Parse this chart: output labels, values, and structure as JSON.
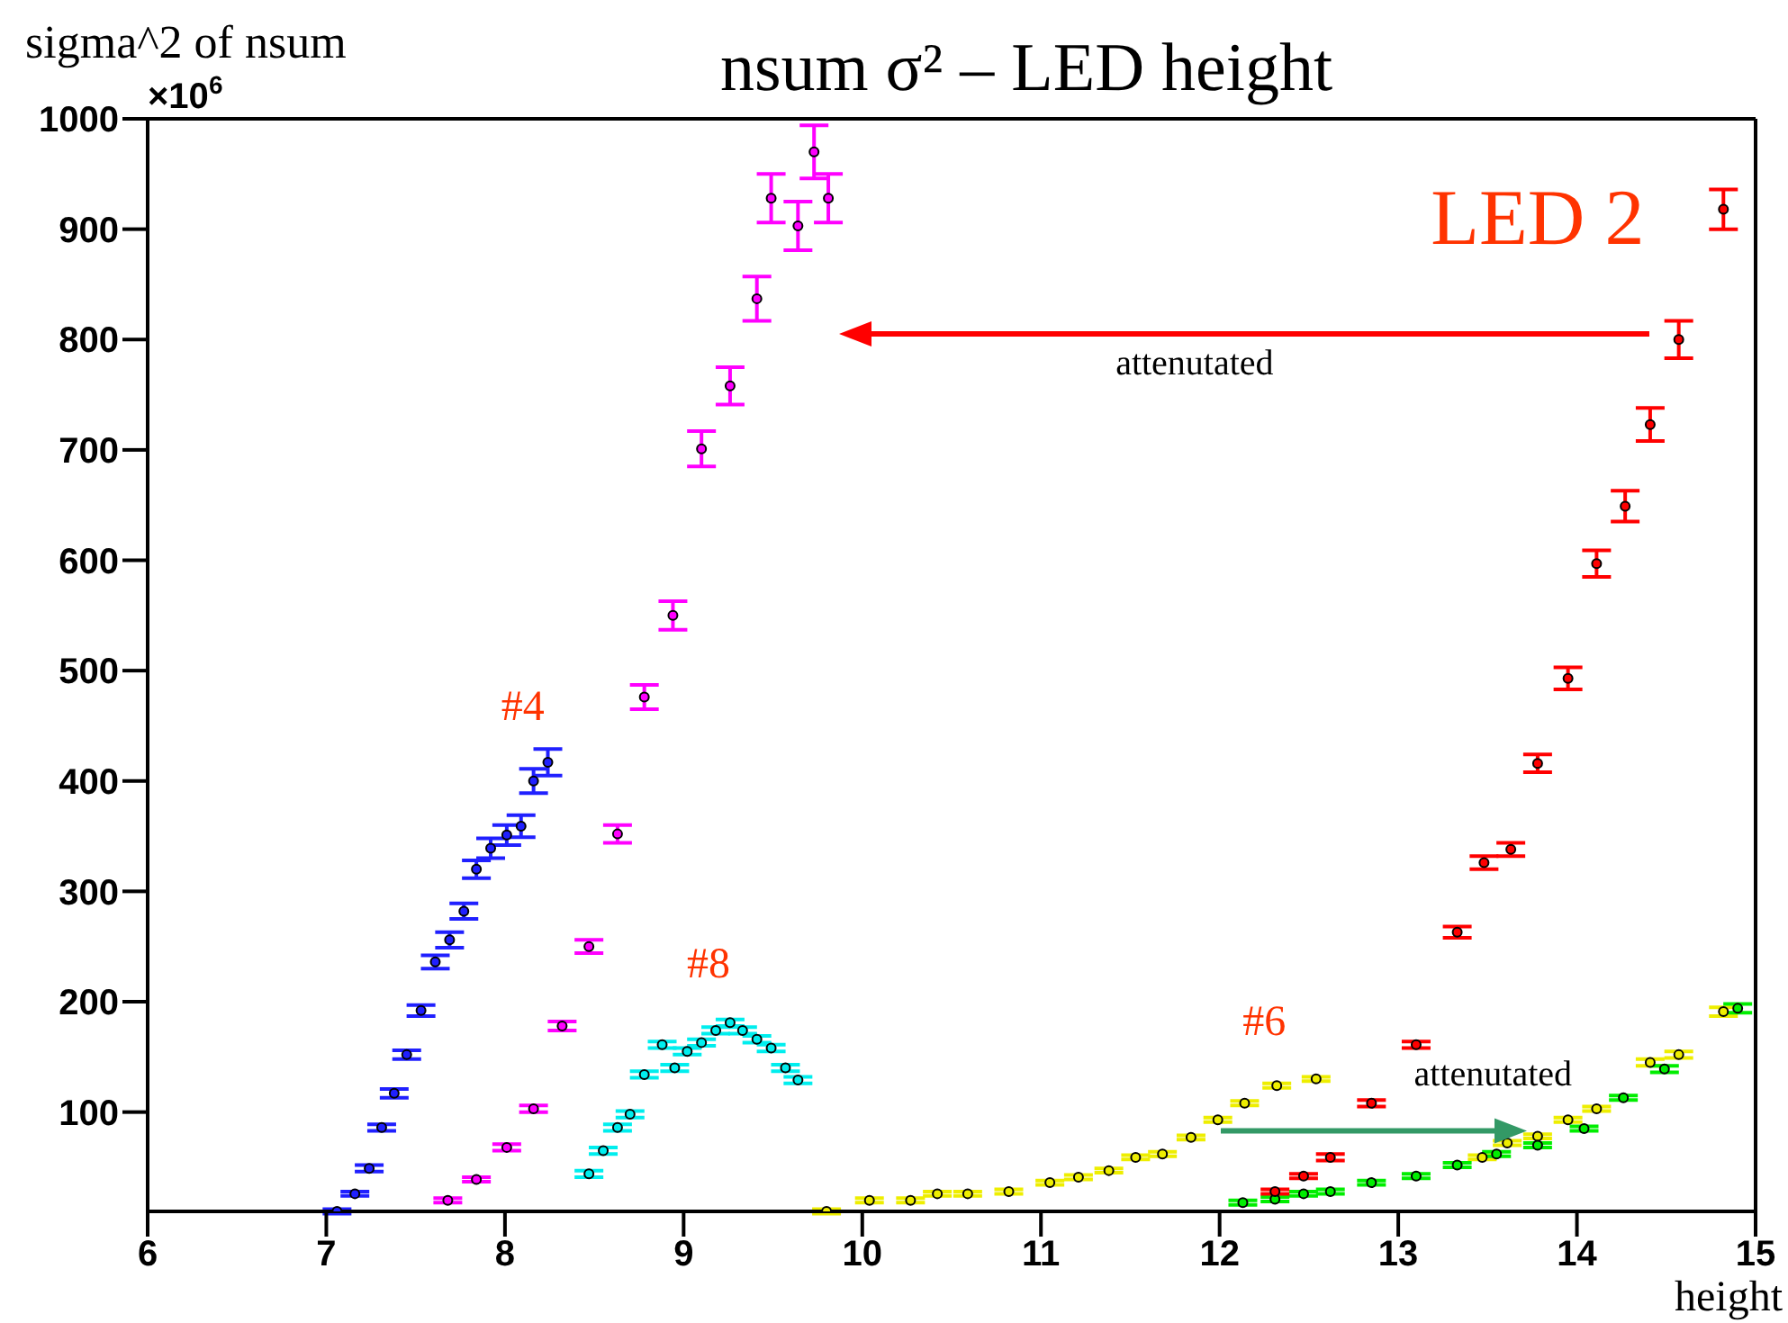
{
  "chart_data": {
    "type": "scatter",
    "title": "nsum σ² – LED height",
    "ylabel": "sigma^2 of nsum",
    "xlabel": "height",
    "xlim": [
      6,
      15
    ],
    "xticks": [
      6,
      7,
      8,
      9,
      10,
      11,
      12,
      13,
      14,
      15
    ],
    "ylim": [
      10,
      1000
    ],
    "yticks": [
      100,
      200,
      300,
      400,
      500,
      600,
      700,
      800,
      900,
      1000
    ],
    "marker": "circle",
    "annotations": [
      "×10$^{6}$",
      "#4",
      "#8",
      "#6",
      "LED 2",
      "attenutated",
      {
        "text": "attenutated",
        "x": 13.72,
        "y": 83
      }
    ],
    "series": [
      {
        "color": "#2020ff",
        "x": [
          7.06,
          7.16,
          7.24,
          7.31,
          7.38,
          7.45,
          7.53,
          7.61,
          7.69,
          7.77,
          7.84,
          7.92,
          8.01,
          8.09,
          8.16,
          8.24
        ],
        "values": [
          10,
          26,
          49,
          86,
          117,
          152,
          192,
          236,
          256,
          282,
          320,
          339,
          351,
          359,
          400,
          417
        ],
        "errors": [
          2,
          2,
          3,
          3,
          4,
          4,
          5,
          6,
          7,
          7,
          8,
          9,
          9,
          10,
          11,
          12
        ]
      },
      {
        "color": "#ff00ff",
        "x": [
          7.68,
          7.84,
          8.01,
          8.16,
          8.32,
          8.47,
          8.63,
          8.78,
          8.94,
          9.1,
          9.26,
          9.41,
          9.49,
          9.64,
          9.73,
          9.81
        ],
        "values": [
          20,
          39,
          68,
          103,
          178,
          250,
          352,
          476,
          550,
          701,
          758,
          837,
          928,
          903,
          970,
          928
        ],
        "errors": [
          2,
          2,
          3,
          3,
          4,
          6,
          8,
          11,
          13,
          16,
          17,
          20,
          22,
          22,
          24,
          22
        ]
      },
      {
        "color": "#00eeee",
        "x": [
          8.47,
          8.55,
          8.63,
          8.7,
          8.78,
          8.88,
          8.95,
          9.02,
          9.1,
          9.18,
          9.26,
          9.33,
          9.41,
          9.49,
          9.57,
          9.64
        ],
        "values": [
          44,
          65,
          86,
          98,
          134,
          161,
          140,
          155,
          163,
          174,
          181,
          174,
          166,
          158,
          140,
          129
        ],
        "errors": [
          3,
          3,
          3,
          3,
          3,
          3,
          3,
          3,
          3,
          3,
          3,
          3,
          3,
          3,
          3,
          3
        ]
      },
      {
        "color": "#eeee00",
        "x": [
          9.8,
          10.04,
          10.27,
          10.42,
          10.59,
          10.82,
          11.05,
          11.21,
          11.38,
          11.53,
          11.68,
          11.84,
          11.99,
          12.14,
          12.32,
          12.54,
          13.47,
          13.61,
          13.78,
          13.95,
          14.11,
          14.41,
          14.57,
          14.82
        ],
        "values": [
          10,
          20,
          20,
          26,
          26,
          28,
          36,
          41,
          47,
          59,
          62,
          77,
          93,
          108,
          124,
          130,
          59,
          72,
          78,
          93,
          103,
          145,
          152,
          191
        ],
        "errors": [
          2,
          2,
          2,
          2,
          2,
          2,
          2,
          2,
          2,
          2,
          2,
          2,
          2,
          2,
          2,
          2,
          2,
          2,
          2,
          2,
          2,
          3,
          3,
          4
        ]
      },
      {
        "color": "#00ee00",
        "x": [
          12.13,
          12.31,
          12.47,
          12.62,
          12.85,
          13.1,
          13.33,
          13.55,
          13.78,
          14.04,
          14.26,
          14.49,
          14.9
        ],
        "values": [
          18,
          21,
          26,
          28,
          36,
          42,
          52,
          62,
          70,
          85,
          113,
          139,
          194
        ],
        "errors": [
          2,
          2,
          2,
          2,
          2,
          2,
          2,
          2,
          2,
          2,
          2,
          3,
          4
        ]
      },
      {
        "color": "#ff0000",
        "x": [
          12.31,
          12.47,
          12.62,
          12.85,
          13.1,
          13.33,
          13.48,
          13.63,
          13.78,
          13.95,
          14.11,
          14.27,
          14.41,
          14.57,
          14.82
        ],
        "values": [
          28,
          42,
          59,
          108,
          161,
          263,
          326,
          338,
          416,
          493,
          597,
          649,
          723,
          800,
          918
        ],
        "errors": [
          2,
          2,
          3,
          3,
          3,
          5,
          6,
          6,
          8,
          10,
          12,
          14,
          15,
          17,
          18
        ]
      }
    ]
  }
}
